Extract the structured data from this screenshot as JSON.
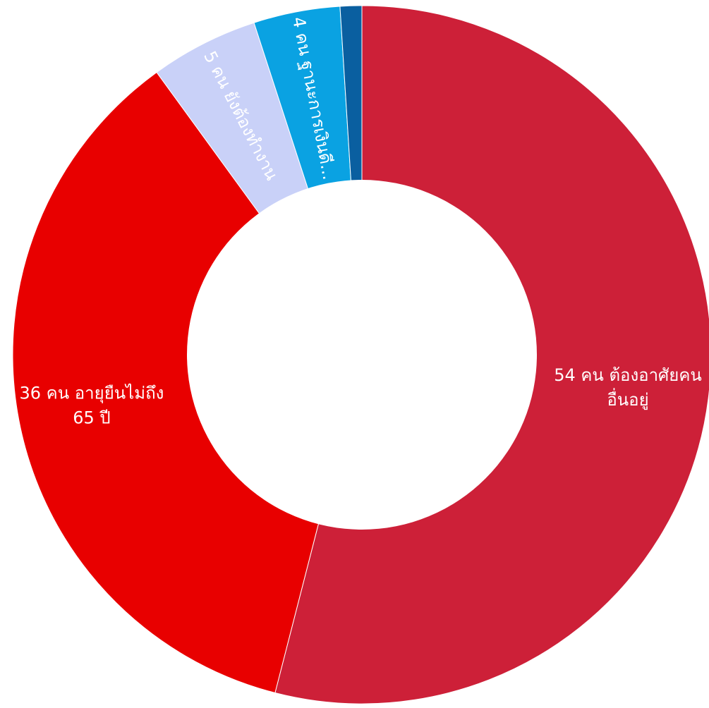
{
  "chart_data": {
    "type": "pie",
    "donut": true,
    "categories": [
      "ต้องอาศัยคนอื่นอยู่",
      "อายุยืนไม่ถึง 65 ปี",
      "ยังต้องทำงาน",
      "ฐานะการเงินดี",
      ""
    ],
    "values": [
      54,
      36,
      5,
      4,
      1
    ],
    "labels": [
      [
        "54 คน ต้องอาศัยคน",
        "อื่นอยู่"
      ],
      [
        "36 คน อายุยืนไม่ถึง",
        "65 ปี"
      ],
      [
        "5 คน ยังต้องทำงาน"
      ],
      [
        "4 คน ฐานะการเงินดี..."
      ],
      []
    ],
    "colors": [
      "#cd2038",
      "#e80000",
      "#c9d1f8",
      "#0aa2e2",
      "#0a5fa0"
    ],
    "start_angle_deg": 0,
    "direction": "clockwise"
  }
}
